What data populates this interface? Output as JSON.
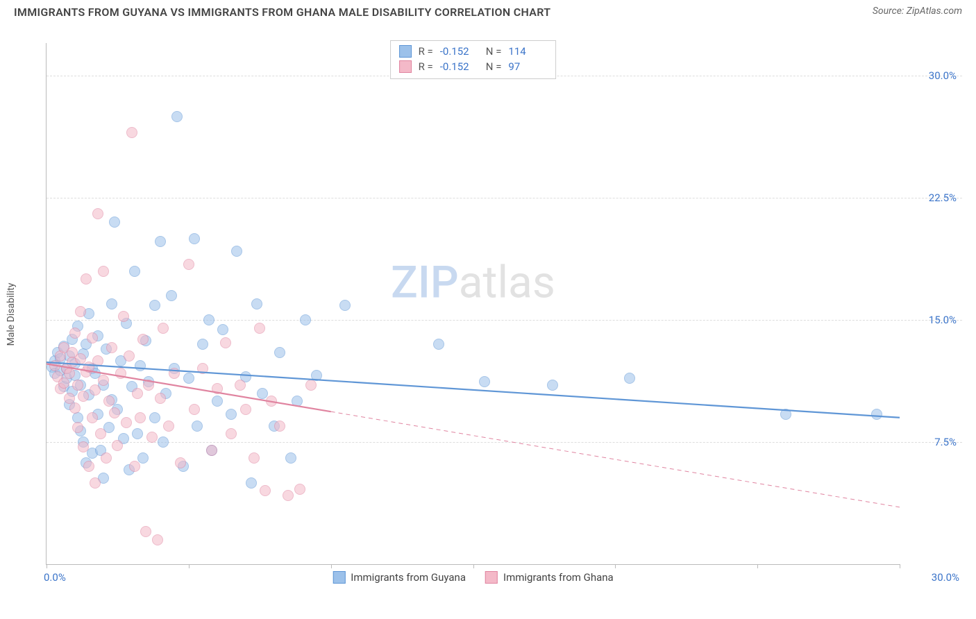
{
  "title": "IMMIGRANTS FROM GUYANA VS IMMIGRANTS FROM GHANA MALE DISABILITY CORRELATION CHART",
  "source": "Source: ZipAtlas.com",
  "ylabel": "Male Disability",
  "watermark_a": "ZIP",
  "watermark_b": "atlas",
  "chart": {
    "type": "scatter",
    "background_color": "#ffffff",
    "grid_color": "#dddddd",
    "border_color": "#bbbbbb",
    "xlim": [
      0,
      30
    ],
    "ylim": [
      0,
      32
    ],
    "x_axis_min_label": "0.0%",
    "x_axis_max_label": "30.0%",
    "y_ticks": [
      {
        "v": 7.5,
        "label": "7.5%"
      },
      {
        "v": 15.0,
        "label": "15.0%"
      },
      {
        "v": 22.5,
        "label": "22.5%"
      },
      {
        "v": 30.0,
        "label": "30.0%"
      }
    ],
    "x_tick_positions": [
      0,
      5,
      10,
      15,
      20,
      25,
      30
    ],
    "marker_radius": 8,
    "marker_opacity": 0.55,
    "marker_stroke_opacity": 0.9,
    "tick_label_color": "#3b74c9",
    "series": [
      {
        "key": "guyana",
        "label": "Immigrants from Guyana",
        "fill_color": "#9cc1ea",
        "stroke_color": "#5f96d6",
        "R": "-0.152",
        "N": "114",
        "trend": {
          "x1": 0,
          "y1": 12.4,
          "x2": 30,
          "y2": 9.0,
          "solid_until_x": 30,
          "width": 2.2
        },
        "points": [
          [
            0.2,
            12.1
          ],
          [
            0.3,
            12.5
          ],
          [
            0.3,
            11.7
          ],
          [
            0.4,
            13.0
          ],
          [
            0.5,
            11.9
          ],
          [
            0.5,
            12.6
          ],
          [
            0.6,
            10.9
          ],
          [
            0.6,
            13.4
          ],
          [
            0.7,
            12.0
          ],
          [
            0.7,
            11.4
          ],
          [
            0.8,
            9.8
          ],
          [
            0.8,
            12.8
          ],
          [
            0.9,
            10.6
          ],
          [
            0.9,
            13.8
          ],
          [
            1.0,
            11.6
          ],
          [
            1.0,
            12.3
          ],
          [
            1.1,
            9.0
          ],
          [
            1.1,
            14.6
          ],
          [
            1.2,
            8.2
          ],
          [
            1.2,
            11.0
          ],
          [
            1.3,
            7.5
          ],
          [
            1.3,
            12.9
          ],
          [
            1.4,
            6.2
          ],
          [
            1.4,
            13.5
          ],
          [
            1.5,
            10.4
          ],
          [
            1.5,
            15.4
          ],
          [
            1.6,
            6.8
          ],
          [
            1.6,
            12.0
          ],
          [
            1.7,
            11.7
          ],
          [
            1.8,
            9.2
          ],
          [
            1.8,
            14.0
          ],
          [
            1.9,
            7.0
          ],
          [
            2.0,
            11.0
          ],
          [
            2.0,
            5.3
          ],
          [
            2.1,
            13.2
          ],
          [
            2.2,
            8.4
          ],
          [
            2.3,
            10.1
          ],
          [
            2.3,
            16.0
          ],
          [
            2.4,
            21.0
          ],
          [
            2.5,
            9.5
          ],
          [
            2.6,
            12.5
          ],
          [
            2.7,
            7.7
          ],
          [
            2.8,
            14.8
          ],
          [
            2.9,
            5.8
          ],
          [
            3.0,
            10.9
          ],
          [
            3.1,
            18.0
          ],
          [
            3.2,
            8.0
          ],
          [
            3.3,
            12.2
          ],
          [
            3.4,
            6.5
          ],
          [
            3.5,
            13.7
          ],
          [
            3.6,
            11.2
          ],
          [
            3.8,
            9.0
          ],
          [
            3.8,
            15.9
          ],
          [
            4.0,
            19.8
          ],
          [
            4.1,
            7.5
          ],
          [
            4.2,
            10.5
          ],
          [
            4.4,
            16.5
          ],
          [
            4.5,
            12.0
          ],
          [
            4.6,
            27.5
          ],
          [
            4.8,
            6.0
          ],
          [
            5.0,
            11.4
          ],
          [
            5.2,
            20.0
          ],
          [
            5.3,
            8.5
          ],
          [
            5.5,
            13.5
          ],
          [
            5.7,
            15.0
          ],
          [
            5.8,
            7.0
          ],
          [
            6.0,
            10.0
          ],
          [
            6.2,
            14.4
          ],
          [
            6.5,
            9.2
          ],
          [
            6.7,
            19.2
          ],
          [
            7.0,
            11.5
          ],
          [
            7.2,
            5.0
          ],
          [
            7.4,
            16.0
          ],
          [
            7.6,
            10.5
          ],
          [
            8.0,
            8.5
          ],
          [
            8.2,
            13.0
          ],
          [
            8.6,
            6.5
          ],
          [
            8.8,
            10.0
          ],
          [
            9.1,
            15.0
          ],
          [
            9.5,
            11.6
          ],
          [
            10.5,
            15.9
          ],
          [
            13.8,
            13.5
          ],
          [
            15.4,
            11.2
          ],
          [
            17.8,
            11.0
          ],
          [
            20.5,
            11.4
          ],
          [
            26.0,
            9.2
          ],
          [
            29.2,
            9.2
          ]
        ]
      },
      {
        "key": "ghana",
        "label": "Immigrants from Ghana",
        "fill_color": "#f4b9c8",
        "stroke_color": "#e084a0",
        "R": "-0.152",
        "N": "97",
        "trend": {
          "x1": 0,
          "y1": 12.3,
          "x2": 30,
          "y2": 3.5,
          "solid_until_x": 10,
          "width": 2.2
        },
        "points": [
          [
            0.3,
            12.2
          ],
          [
            0.4,
            11.5
          ],
          [
            0.5,
            12.8
          ],
          [
            0.5,
            10.8
          ],
          [
            0.6,
            13.3
          ],
          [
            0.6,
            11.1
          ],
          [
            0.7,
            12.0
          ],
          [
            0.8,
            11.7
          ],
          [
            0.8,
            10.2
          ],
          [
            0.9,
            13.0
          ],
          [
            0.9,
            12.4
          ],
          [
            1.0,
            9.6
          ],
          [
            1.0,
            14.2
          ],
          [
            1.1,
            11.0
          ],
          [
            1.1,
            8.4
          ],
          [
            1.2,
            12.6
          ],
          [
            1.2,
            15.5
          ],
          [
            1.3,
            10.3
          ],
          [
            1.3,
            7.2
          ],
          [
            1.4,
            11.8
          ],
          [
            1.4,
            17.5
          ],
          [
            1.5,
            6.0
          ],
          [
            1.5,
            12.1
          ],
          [
            1.6,
            9.0
          ],
          [
            1.6,
            13.9
          ],
          [
            1.7,
            10.7
          ],
          [
            1.7,
            5.0
          ],
          [
            1.8,
            12.5
          ],
          [
            1.8,
            21.5
          ],
          [
            1.9,
            8.0
          ],
          [
            2.0,
            11.3
          ],
          [
            2.0,
            18.0
          ],
          [
            2.1,
            6.5
          ],
          [
            2.2,
            10.0
          ],
          [
            2.3,
            13.3
          ],
          [
            2.4,
            9.3
          ],
          [
            2.5,
            7.3
          ],
          [
            2.6,
            11.7
          ],
          [
            2.7,
            15.2
          ],
          [
            2.8,
            8.7
          ],
          [
            2.9,
            12.8
          ],
          [
            3.0,
            26.5
          ],
          [
            3.1,
            6.0
          ],
          [
            3.2,
            10.5
          ],
          [
            3.3,
            9.0
          ],
          [
            3.4,
            13.8
          ],
          [
            3.5,
            2.0
          ],
          [
            3.6,
            11.0
          ],
          [
            3.7,
            7.8
          ],
          [
            3.9,
            1.5
          ],
          [
            4.0,
            10.2
          ],
          [
            4.1,
            14.5
          ],
          [
            4.3,
            8.5
          ],
          [
            4.5,
            11.7
          ],
          [
            4.7,
            6.2
          ],
          [
            5.0,
            18.4
          ],
          [
            5.2,
            9.5
          ],
          [
            5.5,
            12.0
          ],
          [
            5.8,
            7.0
          ],
          [
            6.0,
            10.8
          ],
          [
            6.3,
            13.6
          ],
          [
            6.5,
            8.0
          ],
          [
            6.8,
            11.0
          ],
          [
            7.0,
            9.5
          ],
          [
            7.3,
            6.5
          ],
          [
            7.5,
            14.5
          ],
          [
            7.7,
            4.5
          ],
          [
            7.9,
            10.0
          ],
          [
            8.2,
            8.5
          ],
          [
            8.5,
            4.2
          ],
          [
            8.9,
            4.6
          ],
          [
            9.3,
            11.0
          ]
        ]
      }
    ],
    "legend_top": {
      "R_label": "R =",
      "N_label": "N ="
    }
  }
}
